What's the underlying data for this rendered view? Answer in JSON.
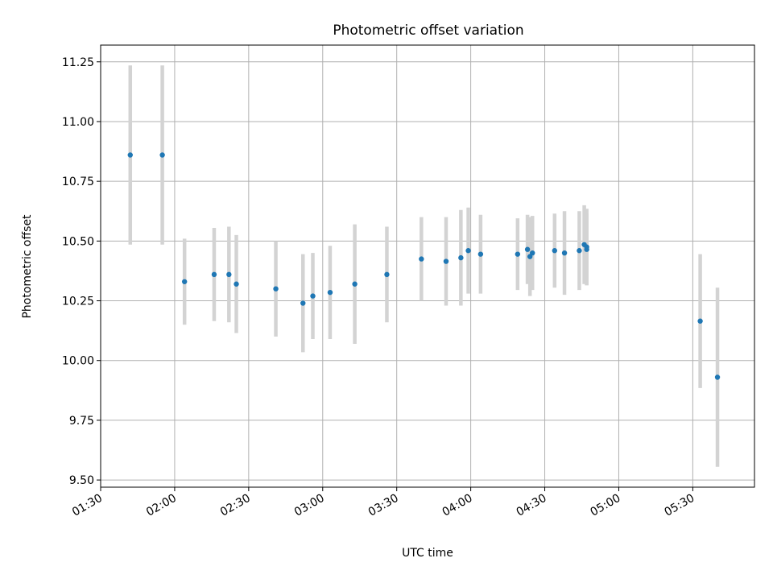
{
  "chart_data": {
    "type": "scatter",
    "title": "Photometric offset variation",
    "xlabel": "UTC time",
    "ylabel": "Photometric offset",
    "xlim": [
      "01:30",
      "05:55"
    ],
    "ylim": [
      9.47,
      11.32
    ],
    "x_ticks": [
      "01:30",
      "02:00",
      "02:30",
      "03:00",
      "03:30",
      "04:00",
      "04:30",
      "05:00",
      "05:30"
    ],
    "y_ticks": [
      "9.50",
      "9.75",
      "10.00",
      "10.25",
      "10.50",
      "10.75",
      "11.00",
      "11.25"
    ],
    "grid": true,
    "colors": {
      "point": "#1f77b4",
      "errorbar": "#d3d3d3",
      "grid": "#b0b0b0"
    },
    "points": [
      {
        "x": "01:42",
        "y": 10.86,
        "err": 0.375
      },
      {
        "x": "01:55",
        "y": 10.86,
        "err": 0.375
      },
      {
        "x": "02:04",
        "y": 10.33,
        "err": 0.18
      },
      {
        "x": "02:16",
        "y": 10.36,
        "err": 0.195
      },
      {
        "x": "02:22",
        "y": 10.36,
        "err": 0.2
      },
      {
        "x": "02:25",
        "y": 10.32,
        "err": 0.205
      },
      {
        "x": "02:41",
        "y": 10.3,
        "err": 0.2
      },
      {
        "x": "02:52",
        "y": 10.24,
        "err": 0.205
      },
      {
        "x": "02:56",
        "y": 10.27,
        "err": 0.18
      },
      {
        "x": "03:03",
        "y": 10.285,
        "err": 0.195
      },
      {
        "x": "03:13",
        "y": 10.32,
        "err": 0.25
      },
      {
        "x": "03:26",
        "y": 10.36,
        "err": 0.2
      },
      {
        "x": "03:40",
        "y": 10.425,
        "err": 0.175
      },
      {
        "x": "03:50",
        "y": 10.415,
        "err": 0.185
      },
      {
        "x": "03:56",
        "y": 10.43,
        "err": 0.2
      },
      {
        "x": "03:59",
        "y": 10.46,
        "err": 0.18
      },
      {
        "x": "04:04",
        "y": 10.445,
        "err": 0.165
      },
      {
        "x": "04:19",
        "y": 10.445,
        "err": 0.15
      },
      {
        "x": "04:23",
        "y": 10.465,
        "err": 0.145
      },
      {
        "x": "04:24",
        "y": 10.435,
        "err": 0.165
      },
      {
        "x": "04:25",
        "y": 10.45,
        "err": 0.155
      },
      {
        "x": "04:34",
        "y": 10.46,
        "err": 0.155
      },
      {
        "x": "04:38",
        "y": 10.45,
        "err": 0.175
      },
      {
        "x": "04:44",
        "y": 10.46,
        "err": 0.165
      },
      {
        "x": "04:46",
        "y": 10.485,
        "err": 0.165
      },
      {
        "x": "04:47",
        "y": 10.475,
        "err": 0.16
      },
      {
        "x": "04:47",
        "y": 10.465,
        "err": 0.15
      },
      {
        "x": "05:33",
        "y": 10.165,
        "err": 0.28
      },
      {
        "x": "05:40",
        "y": 9.93,
        "err": 0.375
      }
    ]
  }
}
